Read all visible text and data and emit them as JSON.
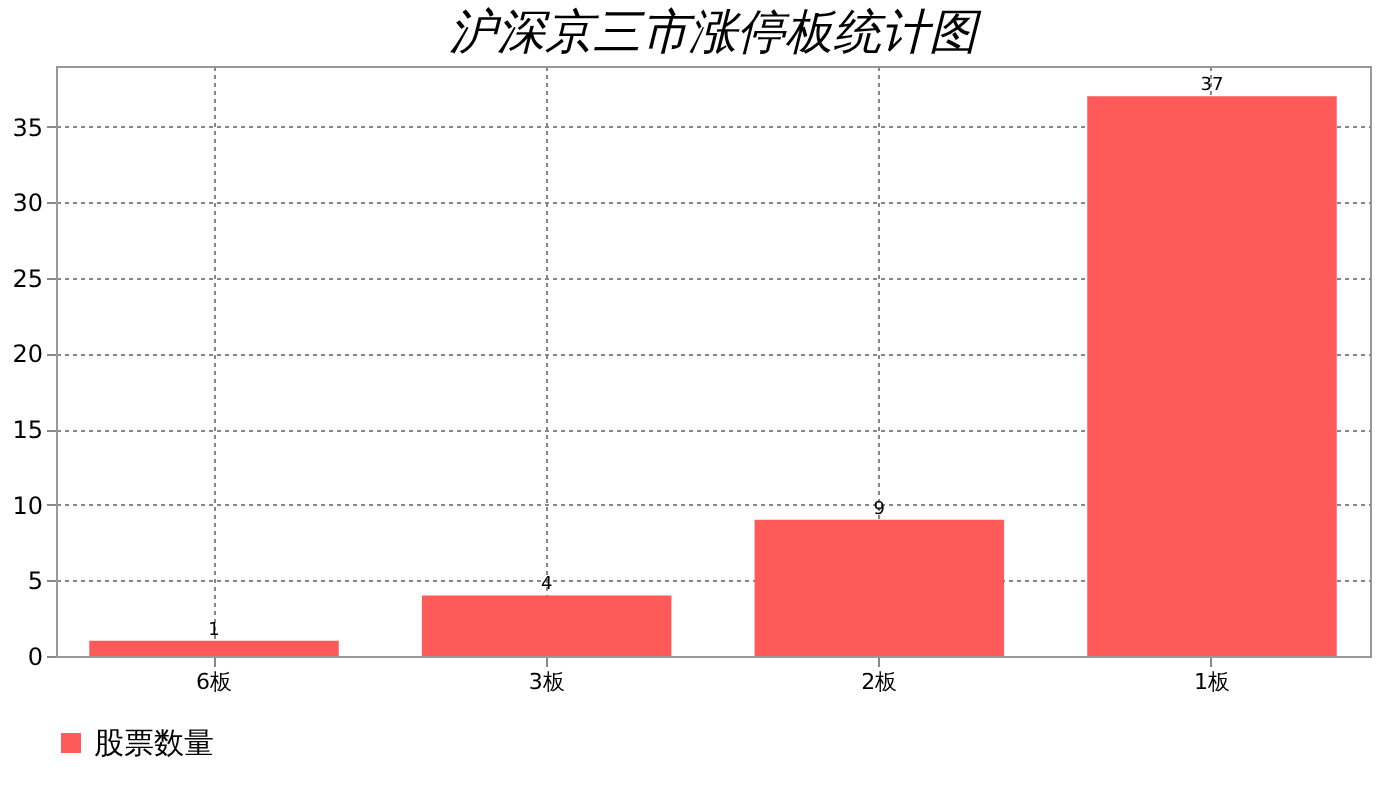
{
  "chart_data": {
    "type": "bar",
    "title": "沪深京三市涨停板统计图",
    "categories": [
      "6板",
      "3板",
      "2板",
      "1板"
    ],
    "series": [
      {
        "name": "股票数量",
        "color": "#ff5a5a",
        "values": [
          1,
          4,
          9,
          37
        ]
      }
    ],
    "ylim": [
      0,
      39
    ],
    "yticks": [
      0,
      5,
      10,
      15,
      20,
      25,
      30,
      35
    ],
    "grid": true,
    "legend": "bottom",
    "data_labels": true
  }
}
